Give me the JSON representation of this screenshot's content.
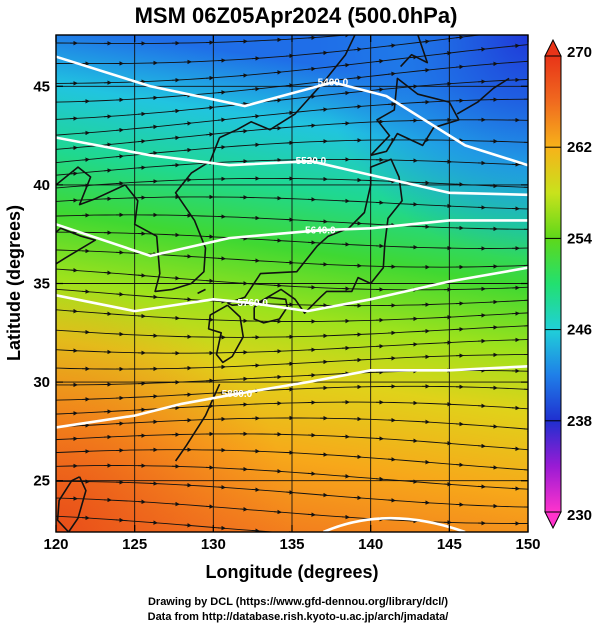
{
  "title": "MSM 06Z05Apr2024 (500.0hPa)",
  "xlabel": "Longitude (degrees)",
  "ylabel": "Latitude  (degrees)",
  "credits": [
    "Drawing by DCL (https://www.gfd-dennou.org/library/dcl/)",
    "Data from http://database.rish.kyoto-u.ac.jp/arch/jmadata/"
  ],
  "map": {
    "lon_range": [
      120,
      150
    ],
    "lat_range": [
      22.4,
      47.6
    ],
    "lon_ticks": [
      120,
      125,
      130,
      135,
      140,
      145,
      150
    ],
    "lat_ticks": [
      25,
      30,
      35,
      40,
      45
    ],
    "lon_tick_labels": [
      "120",
      "125",
      "130",
      "135",
      "140",
      "145",
      "150"
    ],
    "lat_tick_labels": [
      "25",
      "30",
      "35",
      "40",
      "45"
    ],
    "field": "temperature",
    "colorbar": {
      "min": 230,
      "max": 270,
      "ticks": [
        230,
        238,
        246,
        254,
        262,
        270
      ],
      "tick_labels": [
        "230",
        "238",
        "246",
        "254",
        "262",
        "270"
      ],
      "colors": [
        "#ff33cc",
        "#9a1bd4",
        "#1f2fd0",
        "#1f7fe8",
        "#20d0d8",
        "#22e070",
        "#5ed81a",
        "#c9e21c",
        "#f7b21a",
        "#f06a1f",
        "#e83418"
      ]
    },
    "contours": [
      {
        "label": "5400.0",
        "lon": 137.6,
        "lat": 45.2
      },
      {
        "label": "5520.0",
        "lon": 136.2,
        "lat": 41.2
      },
      {
        "label": "5640.0",
        "lon": 136.8,
        "lat": 37.7
      },
      {
        "label": "5760.0",
        "lon": 132.5,
        "lat": 34.0
      },
      {
        "label": "5880.0",
        "lon": 131.5,
        "lat": 29.4
      }
    ]
  }
}
